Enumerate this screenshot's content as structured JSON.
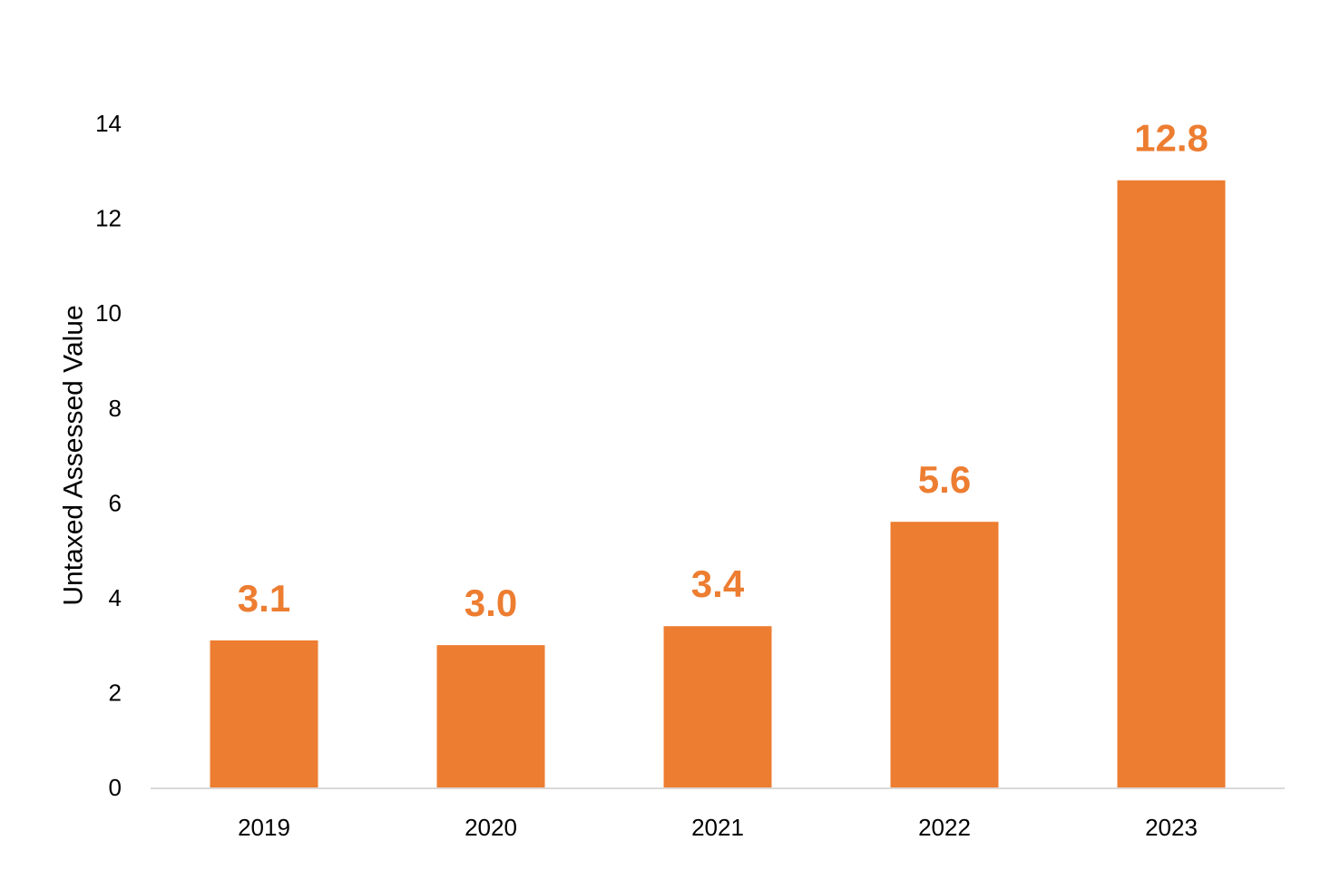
{
  "chart_data": {
    "type": "bar",
    "title": "",
    "xlabel": "",
    "ylabel": "Untaxed Assessed Value",
    "categories": [
      "2019",
      "2020",
      "2021",
      "2022",
      "2023"
    ],
    "values": [
      3.1,
      3.0,
      3.4,
      5.6,
      12.8
    ],
    "data_labels": [
      "3.1",
      "3.0",
      "3.4",
      "5.6",
      "12.8"
    ],
    "y_ticks": [
      "0",
      "2",
      "4",
      "6",
      "8",
      "10",
      "12",
      "14"
    ],
    "ylim": [
      0,
      14
    ],
    "grid": false,
    "legend": "none",
    "colors": {
      "bar": "#ED7D31",
      "data_label": "#ED7D31",
      "axis_line": "#D9D9D9",
      "text": "#000000"
    }
  }
}
